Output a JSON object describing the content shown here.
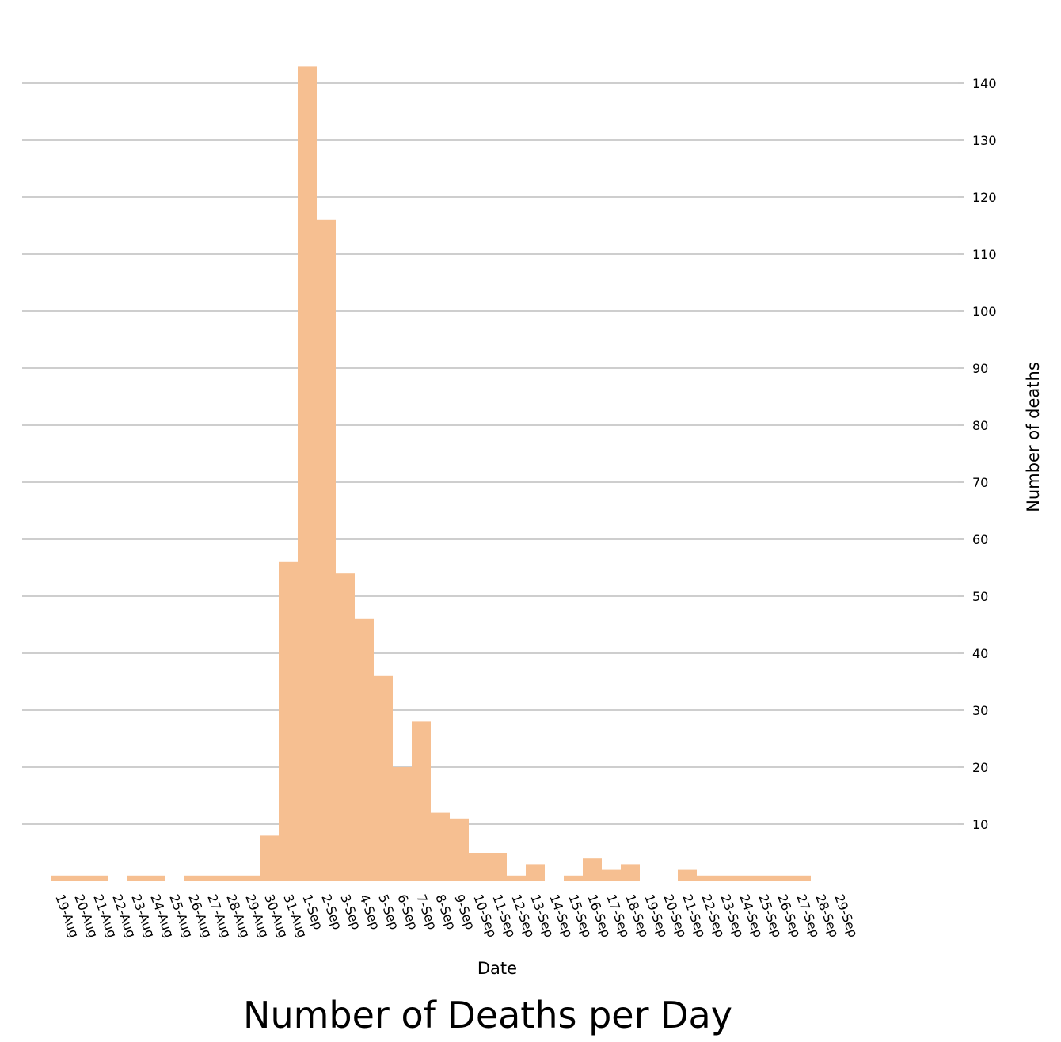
{
  "chart_data": {
    "type": "bar",
    "title": "Number of Deaths per Day",
    "xlabel": "Date",
    "ylabel": "Number of deaths",
    "ylim": [
      0,
      143
    ],
    "yticks": [
      10,
      20,
      30,
      40,
      50,
      60,
      70,
      80,
      90,
      100,
      110,
      120,
      130,
      140
    ],
    "grid": true,
    "y_axis_side": "right",
    "bar_color": "#f6bf91",
    "categories": [
      "19-Aug",
      "20-Aug",
      "21-Aug",
      "22-Aug",
      "23-Aug",
      "24-Aug",
      "25-Aug",
      "26-Aug",
      "27-Aug",
      "28-Aug",
      "29-Aug",
      "30-Aug",
      "31-Aug",
      "1-Sep",
      "2-Sep",
      "3-Sep",
      "4-Sep",
      "5-Sep",
      "6-Sep",
      "7-Sep",
      "8-Sep",
      "9-Sep",
      "10-Sep",
      "11-Sep",
      "12-Sep",
      "13-Sep",
      "14-Sep",
      "15-Sep",
      "16-Sep",
      "17-Sep",
      "18-Sep",
      "19-Sep",
      "20-Sep",
      "21-Sep",
      "22-Sep",
      "23-Sep",
      "24-Sep",
      "25-Sep",
      "26-Sep",
      "27-Sep",
      "28-Sep",
      "29-Sep"
    ],
    "values": [
      1,
      1,
      1,
      0,
      1,
      1,
      0,
      1,
      1,
      1,
      1,
      8,
      56,
      143,
      116,
      54,
      46,
      36,
      20,
      28,
      12,
      11,
      5,
      5,
      1,
      3,
      0,
      1,
      4,
      2,
      3,
      0,
      0,
      2,
      1,
      1,
      1,
      1,
      1,
      1,
      0,
      0
    ]
  }
}
